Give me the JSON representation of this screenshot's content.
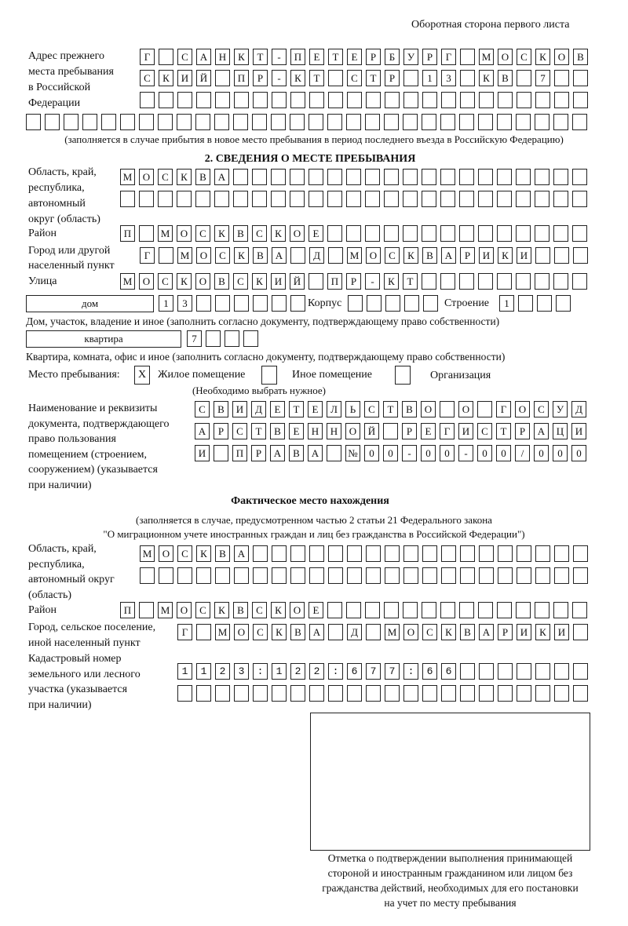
{
  "header": {
    "page_side": "Оборотная сторона первого листа"
  },
  "prev_address": {
    "label": "Адрес прежнего\nместа пребывания\nв Российской\nФедерации",
    "rows": [
      "Г САНКТ-ПЕТЕРБУРГ МОСКОВ",
      "СКИЙ ПР-КТ СТР 13 КВ 7  ",
      "                        ",
      "                              "
    ],
    "note": "(заполняется в случае прибытия в новое место пребывания в период последнего въезда в Российскую Федерацию)"
  },
  "section2": {
    "title": "2. СВЕДЕНИЯ О МЕСТЕ ПРЕБЫВАНИЯ",
    "region": {
      "label": "Область, край,\nреспублика,\nавтономный\nокруг (область)",
      "rows": [
        "МОСКВА                   ",
        "                         "
      ]
    },
    "district": {
      "label": "Район",
      "rows": [
        "П МОСКВСКОЕ              "
      ]
    },
    "city": {
      "label": "Город или другой\nнаселенный пункт",
      "rows": [
        "Г МОСКВА Д МОСКВАРИКИ   "
      ]
    },
    "street": {
      "label": "Улица",
      "rows": [
        "МОСКОВСКИЙ ПР-КТ         "
      ]
    },
    "house": {
      "type": "дом",
      "number": "13      ",
      "korpus_label": "Корпус",
      "korpus": "     ",
      "building_label": "Строение",
      "building": "1   ",
      "note": "Дом, участок, владение и иное (заполнить согласно документу, подтверждающему право собственности)"
    },
    "apartment": {
      "type": "квартира",
      "number": "7   ",
      "note": "Квартира, комната, офис и иное (заполнить согласно документу, подтверждающему право собственности)"
    },
    "stay_place": {
      "label": "Место пребывания:",
      "options": [
        {
          "label": "Жилое помещение",
          "mark": "X"
        },
        {
          "label": "Иное помещение",
          "mark": ""
        },
        {
          "label": "Организация",
          "mark": ""
        }
      ],
      "note": "(Необходимо выбрать нужное)"
    },
    "document": {
      "label": "Наименование и реквизиты\nдокумента, подтверждающего\nправо пользования\nпомещением (строением,\nсооружением) (указывается\nпри наличии)",
      "rows": [
        "СВИДЕТЕЛЬСТВО О ГОСУД",
        "АРСТВЕННОЙ РЕГИСТРАЦИ",
        "И ПРАВА №00-00-00/000"
      ]
    }
  },
  "actual": {
    "title": "Фактическое место нахождения",
    "note1": "(заполняется в случае, предусмотренном частью 2 статьи 21 Федерального закона",
    "note2": "\"О миграционном учете иностранных граждан и лиц без гражданства в Российской Федерации\")",
    "region": {
      "label": "Область, край,\nреспублика,\nавтономный округ\n(область)",
      "rows": [
        "МОСКВА                  ",
        "                        "
      ]
    },
    "district": {
      "label": "Район",
      "rows": [
        "П МОСКВСКОЕ              "
      ]
    },
    "city": {
      "label": "Город, сельское поселение,\nиной населенный пункт",
      "rows": [
        "Г МОСКВА Д МОСКВАРИКИ "
      ]
    },
    "cadastre": {
      "label": "Кадастровый номер\nземельного или лесного\nучастка (указывается\nпри наличии)",
      "rows": [
        "1123:122:677:66       ",
        "                      "
      ]
    }
  },
  "confirmation": {
    "caption": "Отметка о подтверждении выполнения принимающей\nстороной и иностранным гражданином или лицом без\nгражданства действий, необходимых для его постановки\nна учет по месту пребывания"
  }
}
